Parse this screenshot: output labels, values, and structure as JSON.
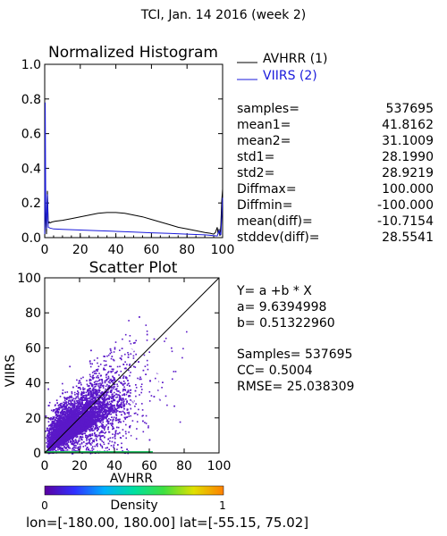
{
  "title": "TCI,  Jan. 14 2016 (week 2)",
  "histogram": {
    "title": "Normalized Histogram",
    "legend": [
      {
        "label": "AVHRR (1)",
        "color": "#000000"
      },
      {
        "label": "VIIRS (2)",
        "color": "#1a1adb"
      }
    ],
    "xlim": [
      0,
      100
    ],
    "ylim": [
      0,
      1
    ],
    "xticks": [
      "0",
      "20",
      "40",
      "60",
      "80",
      "100"
    ],
    "yticks": [
      "0.0",
      "0.2",
      "0.4",
      "0.6",
      "0.8",
      "1.0"
    ],
    "stats": [
      {
        "label": "samples=",
        "value": "537695"
      },
      {
        "label": "mean1=",
        "value": "41.8162"
      },
      {
        "label": "mean2=",
        "value": "31.1009"
      },
      {
        "label": "std1=",
        "value": "28.1990"
      },
      {
        "label": "std2=",
        "value": "28.9219"
      },
      {
        "label": "Diffmax=",
        "value": "100.000"
      },
      {
        "label": "Diffmin=",
        "value": "-100.000"
      },
      {
        "label": "mean(diff)=",
        "value": "-10.7154"
      },
      {
        "label": "stddev(diff)=",
        "value": "28.5541"
      }
    ]
  },
  "scatter": {
    "title": "Scatter Plot",
    "xlabel": "AVHRR",
    "ylabel": "VIIRS",
    "xlim": [
      0,
      100
    ],
    "ylim": [
      0,
      100
    ],
    "xticks": [
      "0",
      "20",
      "40",
      "60",
      "80",
      "100"
    ],
    "yticks": [
      "0",
      "20",
      "40",
      "60",
      "80",
      "100"
    ],
    "fit": {
      "equation": "Y= a +b * X",
      "a_text": "a= 9.6394998",
      "b_text": "b= 0.51322960",
      "a": 9.6394998,
      "b": 0.5132296
    },
    "samples_text": "Samples= 537695",
    "cc_text": "CC=  0.5004",
    "rmse_text": "RMSE= 25.038309",
    "point_color": "#5a18c8"
  },
  "colorbar": {
    "min_label": "0",
    "max_label": "1",
    "label": "Density",
    "colors": [
      "#5a00a0",
      "#3030ff",
      "#00b0ff",
      "#00e0a0",
      "#40e040",
      "#e0e000",
      "#ff8000"
    ]
  },
  "footer": "lon=[-180.00, 180.00] lat=[-55.15, 75.02]",
  "chart_data": [
    {
      "type": "line",
      "title": "Normalized Histogram",
      "xlim": [
        0,
        100
      ],
      "ylim": [
        0,
        1
      ],
      "series": [
        {
          "name": "AVHRR (1)",
          "x": [
            0,
            0.5,
            1,
            1.5,
            2,
            2.5,
            3,
            4,
            6,
            10,
            15,
            20,
            25,
            30,
            35,
            40,
            45,
            50,
            55,
            60,
            65,
            70,
            75,
            80,
            85,
            90,
            93,
            95,
            96,
            97,
            97.5,
            98,
            98.5,
            99,
            99.5,
            100
          ],
          "values": [
            0.0,
            0.2,
            0.02,
            0.27,
            0.08,
            0.09,
            0.085,
            0.09,
            0.095,
            0.1,
            0.11,
            0.12,
            0.13,
            0.14,
            0.145,
            0.145,
            0.14,
            0.13,
            0.12,
            0.105,
            0.09,
            0.075,
            0.06,
            0.05,
            0.04,
            0.03,
            0.025,
            0.02,
            0.03,
            0.06,
            0.02,
            0.05,
            0.01,
            0.07,
            0.21,
            0.28
          ]
        },
        {
          "name": "VIIRS (2)",
          "x": [
            0,
            0.3,
            0.6,
            1,
            1.5,
            2,
            3,
            5,
            10,
            20,
            30,
            40,
            50,
            60,
            70,
            80,
            90,
            95,
            97,
            98,
            99,
            99.5,
            100
          ],
          "values": [
            0.02,
            0.78,
            0.15,
            0.05,
            0.25,
            0.06,
            0.055,
            0.05,
            0.048,
            0.044,
            0.04,
            0.036,
            0.032,
            0.028,
            0.024,
            0.02,
            0.016,
            0.012,
            0.01,
            0.04,
            0.015,
            0.12,
            0.23
          ]
        }
      ]
    },
    {
      "type": "scatter",
      "title": "Scatter Plot",
      "xlabel": "AVHRR",
      "ylabel": "VIIRS",
      "xlim": [
        0,
        100
      ],
      "ylim": [
        0,
        100
      ],
      "n_points": 537695,
      "fit_line": {
        "a": 9.6394998,
        "b": 0.5132296
      },
      "cc": 0.5004,
      "rmse": 25.038309
    }
  ]
}
